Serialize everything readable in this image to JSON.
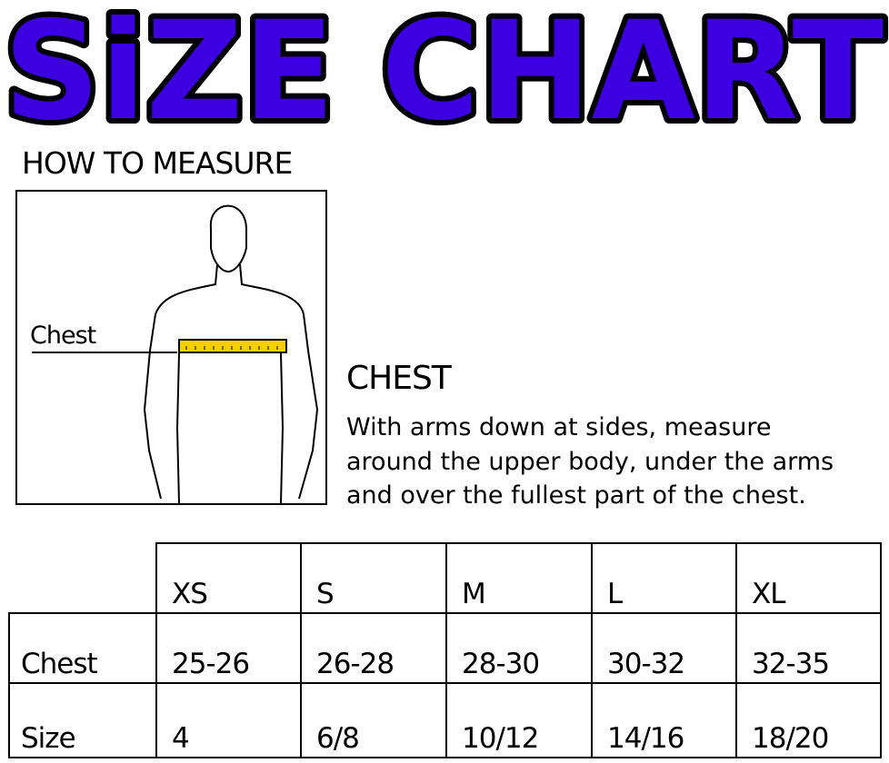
{
  "title": "SiZE CHART",
  "title_color": "#3d00e0",
  "how_to_measure": "HOW TO MEASURE",
  "figure": {
    "chest_label": "Chest",
    "tape_color": "#f5d000"
  },
  "chest": {
    "heading": "CHEST",
    "lines": [
      "With arms down at sides, measure",
      "around the upper body, under the arms",
      "and over the fullest part of the chest."
    ]
  },
  "table": {
    "headers": [
      "XS",
      "S",
      "M",
      "L",
      "XL"
    ],
    "rows": [
      {
        "label": "Chest",
        "values": [
          "25-26",
          "26-28",
          "28-30",
          "30-32",
          "32-35"
        ]
      },
      {
        "label": "Size",
        "values": [
          "4",
          "6/8",
          "10/12",
          "14/16",
          "18/20"
        ]
      }
    ]
  }
}
